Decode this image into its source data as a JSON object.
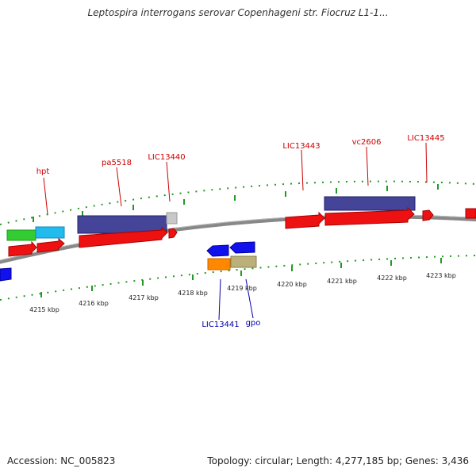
{
  "title": "Leptospira interrogans serovar Copenhageni str. Fiocruz L1-1...",
  "footer": {
    "accession": "Accession: NC_005823",
    "summary": "Topology: circular; Length: 4,277,185 bp; Genes: 3,436"
  },
  "colors": {
    "forward_label": "#cc0000",
    "reverse_label": "#0000aa",
    "ticks": "#229922",
    "backbone": "#888888"
  },
  "gene_labels": [
    {
      "text": "hpt",
      "strand": "forward"
    },
    {
      "text": "pa5518",
      "strand": "forward"
    },
    {
      "text": "LIC13440",
      "strand": "forward"
    },
    {
      "text": "LIC13443",
      "strand": "forward"
    },
    {
      "text": "vc2606",
      "strand": "forward"
    },
    {
      "text": "LIC13445",
      "strand": "forward"
    },
    {
      "text": "LIC13441",
      "strand": "reverse"
    },
    {
      "text": "gpo",
      "strand": "reverse"
    }
  ],
  "kbp_labels": [
    "4215 kbp",
    "4216 kbp",
    "4217 kbp",
    "4218 kbp",
    "4219 kbp",
    "4220 kbp",
    "4221 kbp",
    "4222 kbp",
    "4223 kbp"
  ]
}
